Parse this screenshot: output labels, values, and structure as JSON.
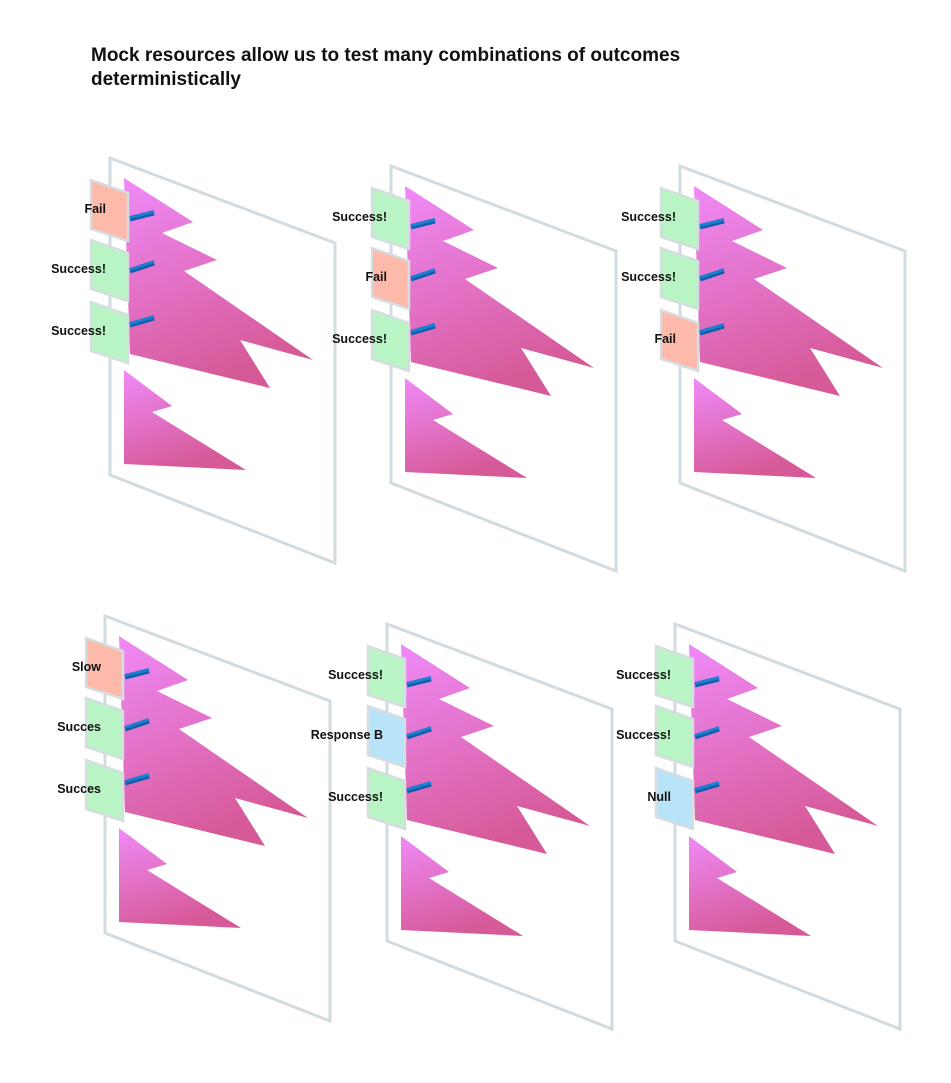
{
  "title": "Mock resources allow us to test many combinations of outcomes deterministically",
  "colors": {
    "success": "#b9f5c4",
    "fail": "#fdb9aa",
    "info": "#b8e3f8",
    "frame_stroke": "#d2dbe0",
    "tree_top": "#f08af8",
    "tree_bottom": "#d65a98",
    "connector": "#1e7fd0"
  },
  "scenarios": [
    {
      "id": "s1",
      "outcomes": [
        {
          "label": "Fail",
          "kind": "fail"
        },
        {
          "label": "Success!",
          "kind": "success"
        },
        {
          "label": "Success!",
          "kind": "success"
        }
      ]
    },
    {
      "id": "s2",
      "outcomes": [
        {
          "label": "Success!",
          "kind": "success"
        },
        {
          "label": "Fail",
          "kind": "fail"
        },
        {
          "label": "Success!",
          "kind": "success"
        }
      ]
    },
    {
      "id": "s3",
      "outcomes": [
        {
          "label": "Success!",
          "kind": "success"
        },
        {
          "label": "Success!",
          "kind": "success"
        },
        {
          "label": "Fail",
          "kind": "fail"
        }
      ]
    },
    {
      "id": "s4",
      "outcomes": [
        {
          "label": "Slow",
          "kind": "fail"
        },
        {
          "label": "Succes",
          "kind": "success"
        },
        {
          "label": "Succes",
          "kind": "success"
        }
      ]
    },
    {
      "id": "s5",
      "outcomes": [
        {
          "label": "Success!",
          "kind": "success"
        },
        {
          "label": "Response B",
          "kind": "info"
        },
        {
          "label": "Success!",
          "kind": "success"
        }
      ]
    },
    {
      "id": "s6",
      "outcomes": [
        {
          "label": "Success!",
          "kind": "success"
        },
        {
          "label": "Success!",
          "kind": "success"
        },
        {
          "label": "Null",
          "kind": "info"
        }
      ]
    }
  ]
}
